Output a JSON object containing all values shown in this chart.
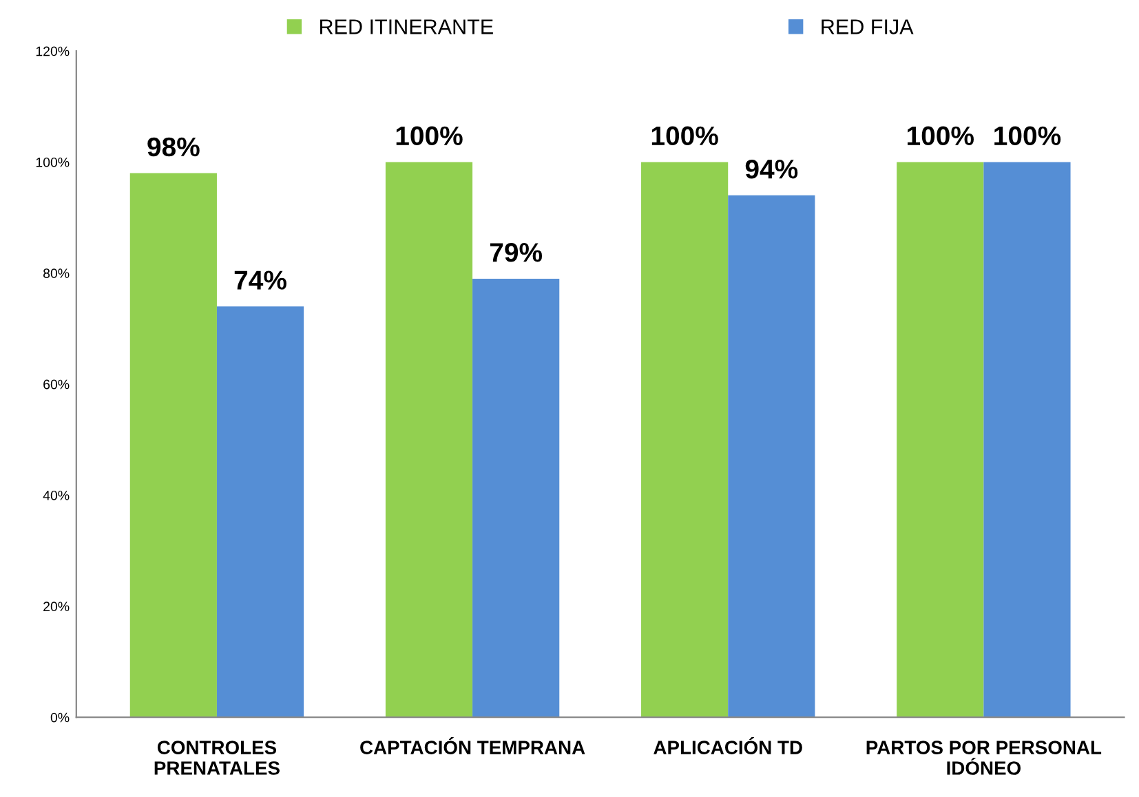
{
  "chart_data": {
    "type": "bar",
    "categories": [
      "CONTROLES\nPRENATALES",
      "CAPTACIÓN TEMPRANA",
      "APLICACIÓN TD",
      "PARTOS POR PERSONAL\nIDÓNEO"
    ],
    "series": [
      {
        "name": "RED ITINERANTE",
        "color": "#92d050",
        "values": [
          98,
          100,
          100,
          100
        ],
        "value_labels": [
          "98%",
          "100%",
          "100%",
          "100%"
        ]
      },
      {
        "name": "RED FIJA",
        "color": "#558ed5",
        "values": [
          74,
          79,
          94,
          100
        ],
        "value_labels": [
          "74%",
          "79%",
          "94%",
          "100%"
        ]
      }
    ],
    "ylim": [
      0,
      120
    ],
    "yticks": [
      {
        "value": 0,
        "label": "0%"
      },
      {
        "value": 20,
        "label": "20%"
      },
      {
        "value": 40,
        "label": "40%"
      },
      {
        "value": 60,
        "label": "60%"
      },
      {
        "value": 80,
        "label": "80%"
      },
      {
        "value": 100,
        "label": "100%"
      },
      {
        "value": 120,
        "label": "120%"
      }
    ],
    "grid": false,
    "legend": "top"
  }
}
